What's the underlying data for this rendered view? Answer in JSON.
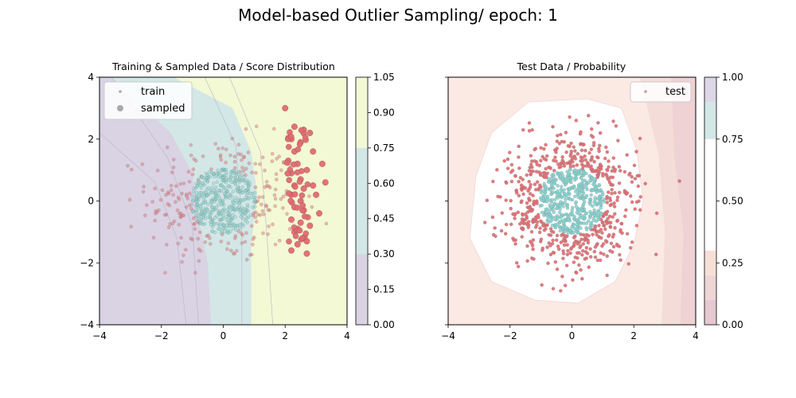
{
  "figure": {
    "title": "Model-based Outlier Sampling/ epoch: 1"
  },
  "colors": {
    "inlier": "#7fd4d0",
    "outlier": "#e06a6f",
    "train_point": "#a9a9a9",
    "purple_region": "#d9d3e3",
    "teal_region": "#d2e7e6",
    "yellow_region": "#f3f8d5",
    "prob_low": "#e6c8d0",
    "prob_white": "#ffffff",
    "prob_pink": "#f7dfd8"
  },
  "chart_data": [
    {
      "type": "scatter",
      "title": "Training & Sampled Data / Score Distribution",
      "xlabel": "",
      "ylabel": "",
      "xlim": [
        -4,
        4
      ],
      "ylim": [
        -4,
        4
      ],
      "xticks": [
        "−4",
        "−2",
        "0",
        "2",
        "4"
      ],
      "yticks": [
        "−4",
        "−2",
        "0",
        "2",
        "4"
      ],
      "legend": {
        "placement": "upper-left",
        "entries": [
          "train",
          "sampled"
        ]
      },
      "background": "filled contour of score (purple → teal → yellow)",
      "series": [
        {
          "name": "train",
          "description": "inlier cloud centered at origin (radius ≈ 1) plus outliers spread around it"
        },
        {
          "name": "sampled",
          "description": "large red points sampled around x ≈ 2.2 to 3.3, y ≈ -2 to 3"
        }
      ],
      "sampled_points": [
        [
          2.0,
          3.0
        ],
        [
          2.3,
          2.4
        ],
        [
          2.6,
          2.3
        ],
        [
          2.2,
          2.0
        ],
        [
          2.5,
          1.9
        ],
        [
          2.3,
          1.6
        ],
        [
          2.1,
          1.3
        ],
        [
          2.4,
          1.2
        ],
        [
          2.7,
          1.0
        ],
        [
          2.2,
          0.9
        ],
        [
          2.5,
          0.7
        ],
        [
          2.3,
          0.5
        ],
        [
          2.6,
          0.4
        ],
        [
          2.9,
          0.5
        ],
        [
          3.0,
          0.2
        ],
        [
          2.2,
          0.2
        ],
        [
          2.5,
          0.0
        ],
        [
          2.3,
          -0.2
        ],
        [
          2.6,
          -0.3
        ],
        [
          3.1,
          -0.4
        ],
        [
          2.2,
          -0.6
        ],
        [
          2.5,
          -0.7
        ],
        [
          2.8,
          -0.8
        ],
        [
          2.3,
          -1.0
        ],
        [
          2.6,
          -1.2
        ],
        [
          2.4,
          -1.4
        ],
        [
          2.2,
          -1.6
        ],
        [
          2.7,
          -1.3
        ],
        [
          3.3,
          0.6
        ],
        [
          3.2,
          1.2
        ],
        [
          2.9,
          1.6
        ],
        [
          2.4,
          -0.9
        ],
        [
          2.8,
          2.2
        ],
        [
          2.7,
          -1.7
        ]
      ],
      "colorbar": {
        "ticks": [
          "0.00",
          "0.15",
          "0.30",
          "0.45",
          "0.60",
          "0.75",
          "0.90",
          "1.05"
        ],
        "range": [
          0.0,
          1.05
        ],
        "bands": [
          {
            "from": 0.0,
            "to": 0.3,
            "color": "#d9d3e3"
          },
          {
            "from": 0.3,
            "to": 0.75,
            "color": "#d2e7e6"
          },
          {
            "from": 0.75,
            "to": 1.05,
            "color": "#f3f8d5"
          }
        ]
      }
    },
    {
      "type": "scatter",
      "title": "Test Data / Probability",
      "xlabel": "",
      "ylabel": "",
      "xlim": [
        -4,
        4
      ],
      "ylim": [
        -4,
        4
      ],
      "xticks": [
        "−4",
        "−2",
        "0",
        "2",
        "4"
      ],
      "yticks": [],
      "legend": {
        "placement": "upper-right",
        "entries": [
          "test"
        ]
      },
      "background": "filled contour of probability (white center, pink edges)",
      "series": [
        {
          "name": "test",
          "description": "inlier cloud at origin (radius ≈ 1) in teal, surrounding outliers in red"
        }
      ],
      "colorbar": {
        "ticks": [
          "0.00",
          "0.25",
          "0.50",
          "0.75",
          "1.00"
        ],
        "range": [
          0.0,
          1.0
        ],
        "bands": [
          {
            "from": 0.0,
            "to": 0.1,
            "color": "#e6c8d0"
          },
          {
            "from": 0.1,
            "to": 0.2,
            "color": "#efd5d6"
          },
          {
            "from": 0.2,
            "to": 0.3,
            "color": "#f7dfd8"
          },
          {
            "from": 0.3,
            "to": 0.75,
            "color": "#ffffff"
          },
          {
            "from": 0.75,
            "to": 0.9,
            "color": "#d2e7e6"
          },
          {
            "from": 0.9,
            "to": 1.0,
            "color": "#dcd6e6"
          }
        ]
      }
    }
  ]
}
